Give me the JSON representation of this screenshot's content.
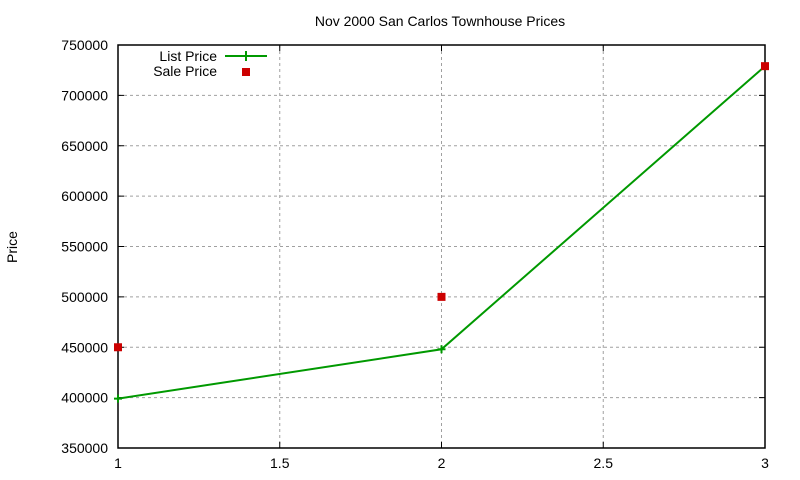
{
  "chart_data": {
    "type": "line",
    "title": "Nov 2000 San Carlos Townhouse Prices",
    "xlabel": "",
    "ylabel": "Price",
    "xlim": [
      1,
      3
    ],
    "ylim": [
      350000,
      750000
    ],
    "x_ticks": [
      "1",
      "1.5",
      "2",
      "2.5",
      "3"
    ],
    "y_ticks": [
      "350000",
      "400000",
      "450000",
      "500000",
      "550000",
      "600000",
      "650000",
      "700000",
      "750000"
    ],
    "grid": true,
    "legend_position": "top-left",
    "x": [
      1,
      2,
      3
    ],
    "series": [
      {
        "name": "List Price",
        "style": "linespoints",
        "marker": "plus",
        "color": "#009900",
        "values": [
          399000,
          448000,
          729000
        ]
      },
      {
        "name": "Sale Price",
        "style": "points",
        "marker": "square",
        "color": "#cc0000",
        "values": [
          450000,
          500000,
          729000
        ]
      }
    ]
  },
  "legend": {
    "list_label": "List Price",
    "sale_label": "Sale Price"
  }
}
